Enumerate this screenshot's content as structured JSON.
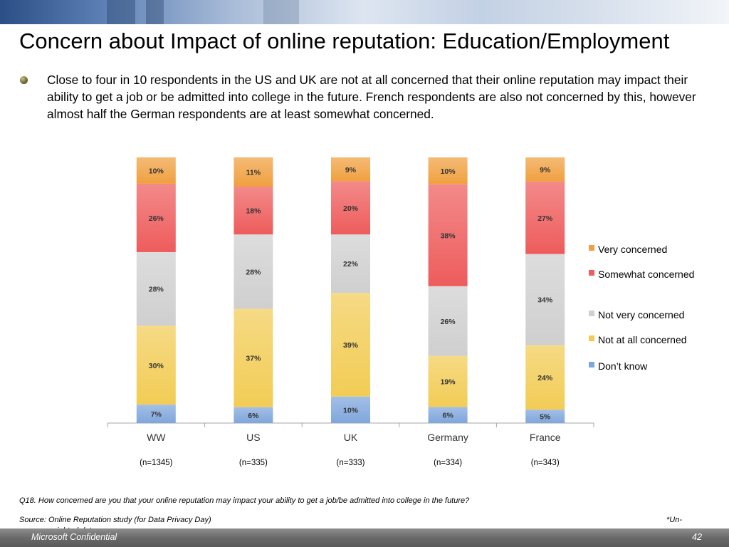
{
  "title": "Concern about Impact of online reputation: Education/Employment",
  "bullet": "Close to four in 10 respondents in the US and UK are not at all concerned that their online reputation may impact their ability to get a job or be admitted into college in the future. French respondents are also not concerned by this, however almost half the German respondents are at least somewhat concerned.",
  "question": "Q18. How concerned are you that your online reputation may impact your ability to get a job/be admitted into college in the future?",
  "source": "Source: Online Reputation study (for Data Privacy Day)",
  "footnote_a": "*Un-",
  "footnote_b": "weighted data",
  "footer": {
    "left": "Microsoft Confidential",
    "page": "42"
  },
  "colors": {
    "Very concerned": "#f0a040",
    "Somewhat concerned": "#ee5c5c",
    "Not very concerned": "#cfcfcf",
    "Not at all concerned": "#f2cc55",
    "Don’t know": "#7fa6dc"
  },
  "chart_data": {
    "type": "bar",
    "stacked": true,
    "categories": [
      "WW",
      "US",
      "UK",
      "Germany",
      "France"
    ],
    "sample_sizes": [
      "(n=1345)",
      "(n=335)",
      "(n=333)",
      "(n=334)",
      "(n=343)"
    ],
    "series": [
      {
        "name": "Don’t know",
        "values": [
          7,
          6,
          10,
          6,
          5
        ]
      },
      {
        "name": "Not at all concerned",
        "values": [
          30,
          37,
          39,
          19,
          24
        ]
      },
      {
        "name": "Not very concerned",
        "values": [
          28,
          28,
          22,
          26,
          34
        ]
      },
      {
        "name": "Somewhat concerned",
        "values": [
          26,
          18,
          20,
          38,
          27
        ]
      },
      {
        "name": "Very concerned",
        "values": [
          10,
          11,
          9,
          10,
          9
        ]
      }
    ],
    "legend_order": [
      "Very concerned",
      "Somewhat concerned",
      "Not very concerned",
      "Not at all concerned",
      "Don’t know"
    ],
    "value_suffix": "%",
    "ylim": [
      0,
      100
    ],
    "legend_position": "right",
    "grid": false
  }
}
